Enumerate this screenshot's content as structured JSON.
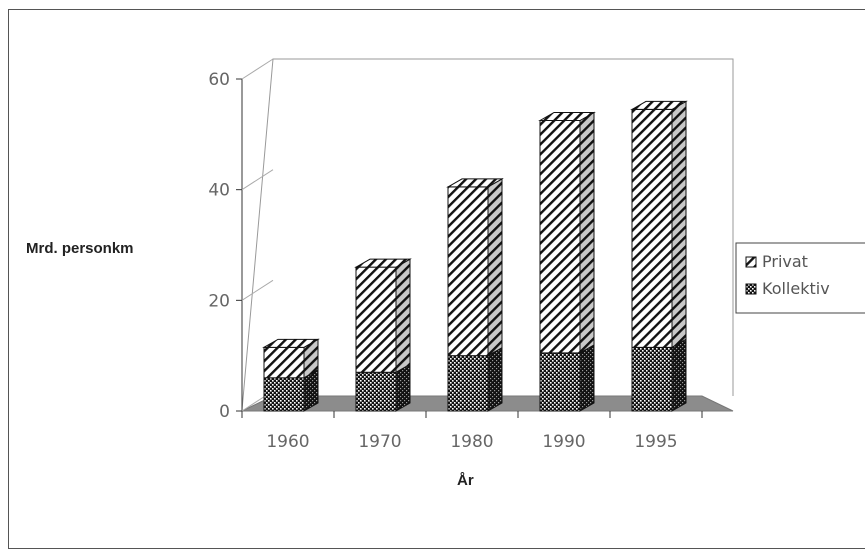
{
  "chart_data": {
    "type": "bar",
    "stacked": true,
    "three_d": true,
    "categories": [
      "1960",
      "1970",
      "1980",
      "1990",
      "1995"
    ],
    "series": [
      {
        "name": "Kollektiv",
        "values": [
          6,
          7,
          10,
          10.5,
          11.5
        ],
        "pattern": "dots"
      },
      {
        "name": "Privat",
        "values": [
          5.5,
          19,
          30.5,
          42,
          43
        ],
        "pattern": "diagonal-hatch"
      }
    ],
    "ylabel": "Mrd. personkm",
    "xlabel": "År",
    "ylim": [
      0,
      60
    ],
    "yticks": [
      "0",
      "20",
      "40",
      "60"
    ],
    "grid": false,
    "legend": "right",
    "colors": {
      "floor": "#8c8c8c",
      "ink": "#111111"
    }
  }
}
